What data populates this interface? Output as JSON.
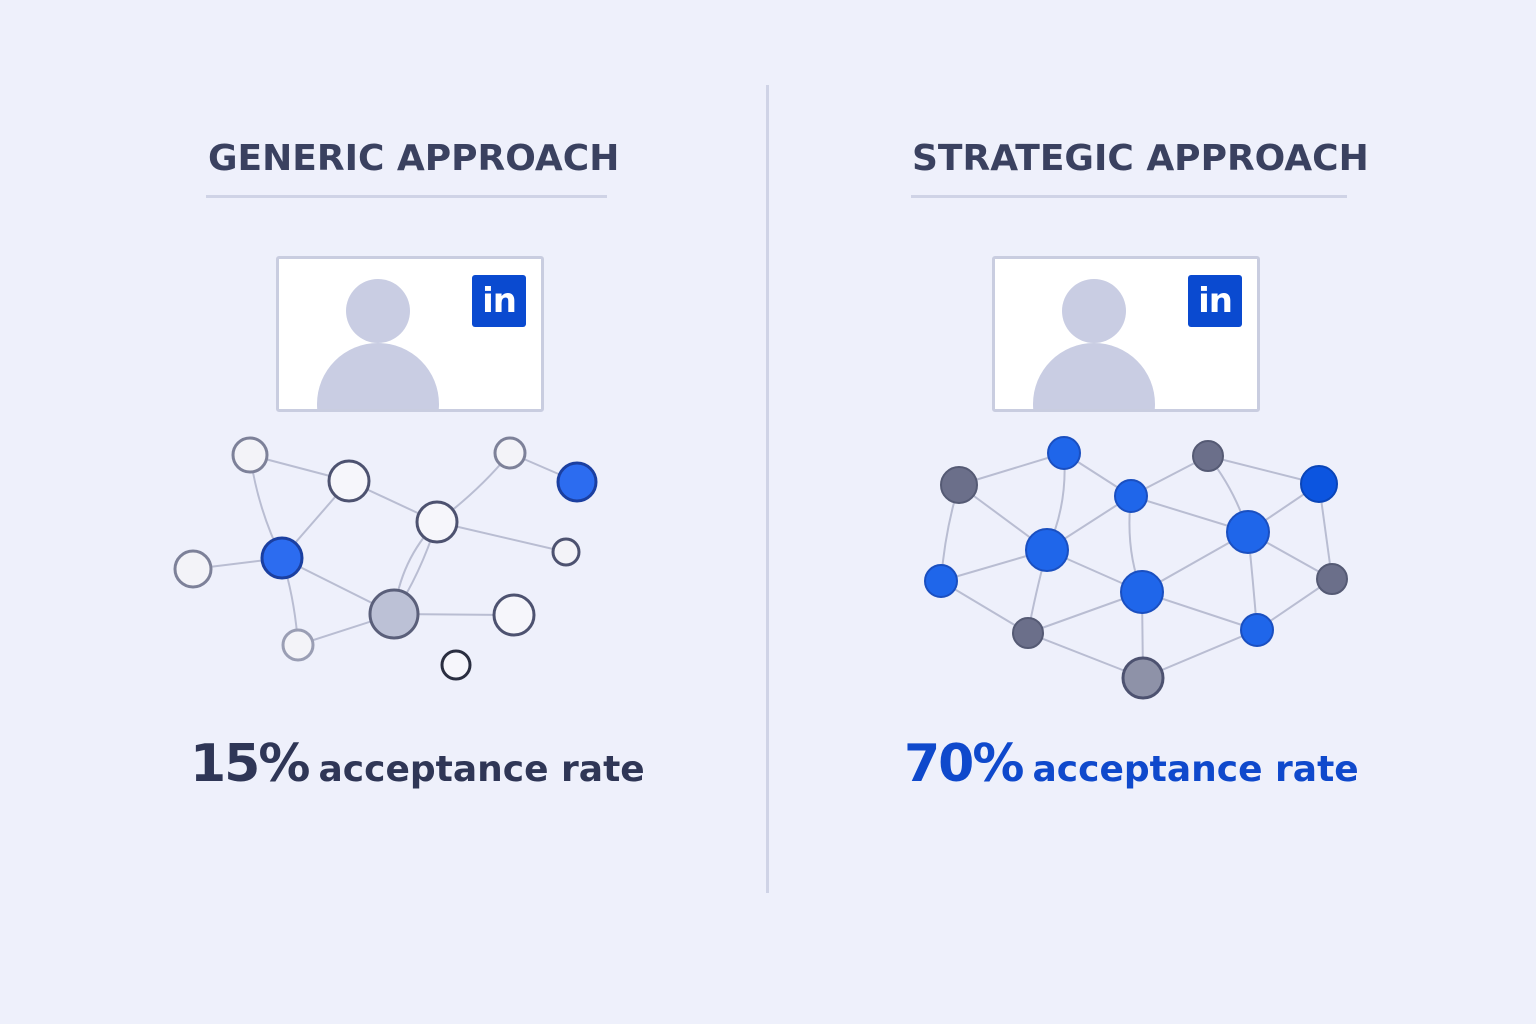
{
  "panels": {
    "generic": {
      "title": "GENERIC APPROACH",
      "badge": "in",
      "rate_value": "15%",
      "rate_label": "acceptance rate"
    },
    "strategic": {
      "title": "STRATEGIC APPROACH",
      "badge": "in",
      "rate_value": "70%",
      "rate_label": "acceptance rate"
    }
  },
  "colors": {
    "background": "#eef0fb",
    "heading": "#3a4160",
    "accent_blue": "#1f66ea",
    "strategic_text": "#0f49cc",
    "generic_text": "#2f3656",
    "linkedin_blue": "#0a4ad0",
    "node_gray": "#6b6f8a",
    "edge": "#b9bdd2"
  },
  "icons": {
    "profile": "user-avatar-icon",
    "badge": "linkedin-logo-icon"
  }
}
